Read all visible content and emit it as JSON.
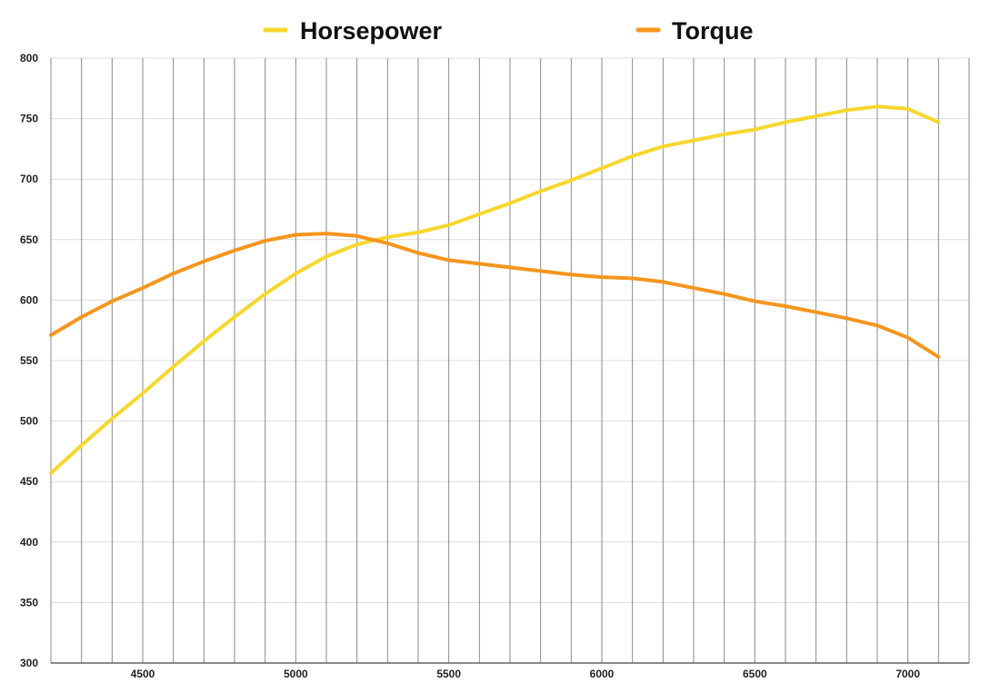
{
  "chart_data": {
    "type": "line",
    "title": "",
    "xlabel": "",
    "ylabel": "",
    "xlim": [
      4200,
      7200
    ],
    "ylim": [
      300,
      800
    ],
    "x_ticks": [
      4500,
      5000,
      5500,
      6000,
      6500,
      7000
    ],
    "y_ticks": [
      300,
      350,
      400,
      450,
      500,
      550,
      600,
      650,
      700,
      750,
      800
    ],
    "grid": {
      "vertical_every": 100,
      "horizontal_every": 50
    },
    "legend_position": "top-center",
    "x": [
      4200,
      4300,
      4400,
      4500,
      4600,
      4700,
      4800,
      4900,
      5000,
      5100,
      5200,
      5300,
      5400,
      5500,
      5600,
      5700,
      5800,
      5900,
      6000,
      6100,
      6200,
      6300,
      6400,
      6500,
      6600,
      6700,
      6800,
      6900,
      7000,
      7100
    ],
    "series": [
      {
        "name": "Horsepower",
        "color": "#F7D72C",
        "values": [
          457,
          480,
          502,
          523,
          545,
          566,
          586,
          605,
          622,
          636,
          646,
          652,
          656,
          662,
          671,
          680,
          690,
          699,
          709,
          719,
          727,
          732,
          737,
          741,
          747,
          752,
          757,
          760,
          758,
          747
        ]
      },
      {
        "name": "Torque",
        "color": "#F4961E",
        "values": [
          571,
          586,
          599,
          610,
          622,
          632,
          641,
          649,
          654,
          655,
          653,
          647,
          639,
          633,
          630,
          627,
          624,
          621,
          619,
          618,
          615,
          610,
          605,
          599,
          595,
          590,
          585,
          579,
          569,
          553
        ]
      }
    ]
  }
}
